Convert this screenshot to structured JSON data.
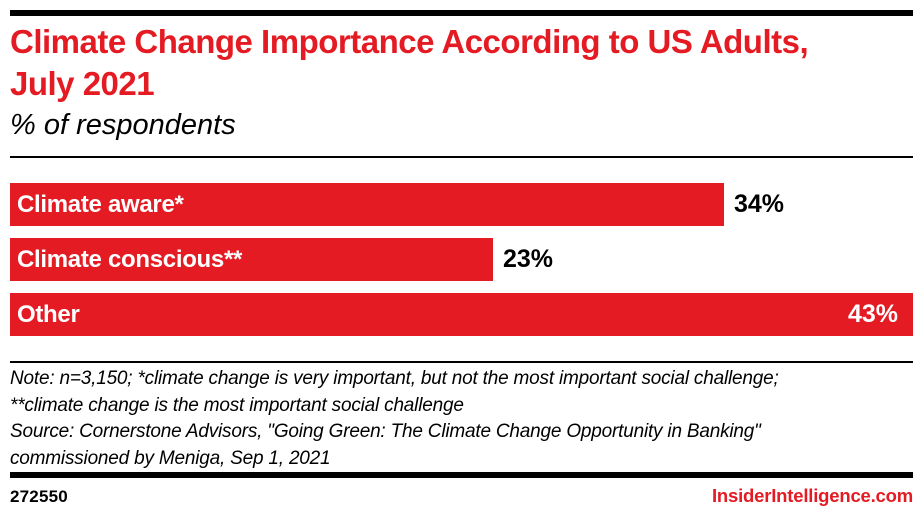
{
  "header": {
    "title": "Climate Change Importance According to US Adults, July 2021",
    "subtitle": "% of respondents"
  },
  "footer": {
    "note": "Note: n=3,150; *climate change is very important, but not the most important social challenge; **climate change is the most important social challenge",
    "source": "Source: Cornerstone Advisors, \"Going Green: The Climate Change Opportunity in Banking\" commissioned by Meniga, Sep 1, 2021",
    "chart_id": "272550",
    "site": "InsiderIntelligence.com"
  },
  "colors": {
    "accent_red": "#e41b23",
    "text_black": "#000000",
    "bar_label_white": "#ffffff"
  },
  "chart_data": {
    "type": "bar",
    "orientation": "horizontal",
    "title": "Climate Change Importance According to US Adults, July 2021",
    "subtitle": "% of respondents",
    "categories": [
      "Climate aware*",
      "Climate conscious**",
      "Other"
    ],
    "values": [
      34,
      23,
      43
    ],
    "value_suffix": "%",
    "xlim": [
      0,
      43
    ],
    "grid": false,
    "legend": "none",
    "bar_color": "#e41b23",
    "value_label_placement": [
      "outside",
      "outside",
      "inside"
    ]
  }
}
